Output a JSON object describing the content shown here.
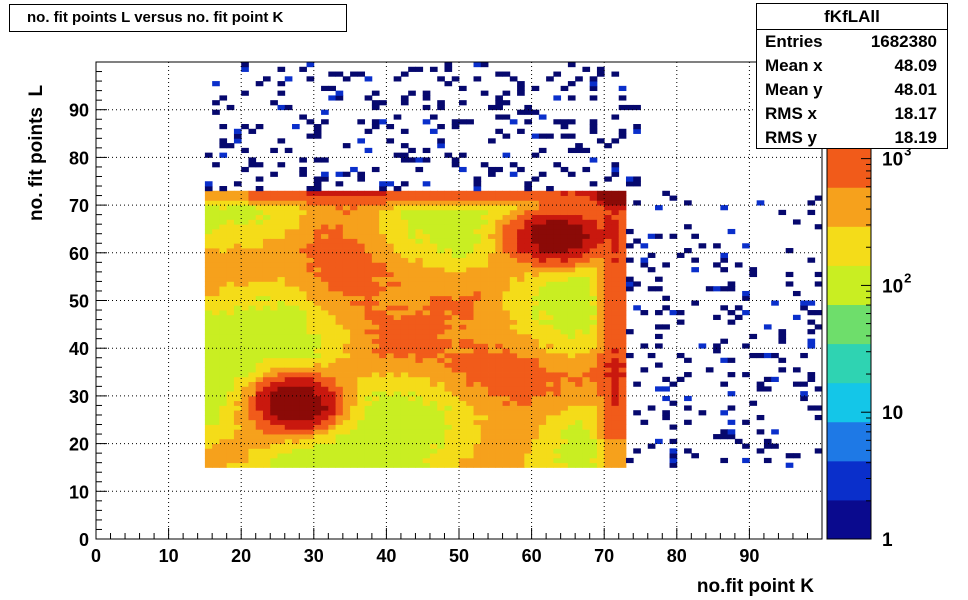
{
  "title": "no. fit points L versus no. fit point K",
  "stats": {
    "name": "fKfLAll",
    "rows": [
      {
        "label": "Entries",
        "value": "1682380"
      },
      {
        "label": "Mean x",
        "value": "48.09"
      },
      {
        "label": "Mean y",
        "value": "48.01"
      },
      {
        "label": "RMS x",
        "value": "18.17"
      },
      {
        "label": "RMS y",
        "value": "18.19"
      }
    ]
  },
  "chart_data": {
    "type": "heatmap",
    "title": "no. fit points L versus no. fit point K",
    "xlabel": "no.fit point K",
    "ylabel": "no. fit points  L",
    "xlim": [
      0,
      100
    ],
    "ylim": [
      0,
      100
    ],
    "x_ticks": [
      "0",
      "10",
      "20",
      "30",
      "40",
      "50",
      "60",
      "70",
      "80",
      "90"
    ],
    "y_ticks": [
      "0",
      "10",
      "20",
      "30",
      "40",
      "50",
      "60",
      "70",
      "80",
      "90"
    ],
    "z_scale": "log",
    "z_range": [
      1,
      5000
    ],
    "z_ticks": [
      {
        "value": 1,
        "base": "1",
        "exp": ""
      },
      {
        "value": 10,
        "base": "10",
        "exp": ""
      },
      {
        "value": 100,
        "base": "10",
        "exp": "2"
      },
      {
        "value": 1000,
        "base": "10",
        "exp": "3"
      }
    ],
    "grid": true,
    "bin_width": 1,
    "dense_region": {
      "x": [
        15,
        73
      ],
      "y": [
        15,
        73
      ]
    },
    "peaks": [
      {
        "x": 27,
        "y": 28,
        "counts": 5000
      },
      {
        "x": 63,
        "y": 63,
        "counts": 4000
      },
      {
        "x": 71,
        "y": 72,
        "counts": 4500
      }
    ],
    "colors": {
      "palette": [
        "#0a0a8e",
        "#0a2fcb",
        "#1e79e6",
        "#14c6e8",
        "#2fd3b2",
        "#6ede6b",
        "#c9ee22",
        "#f4dc19",
        "#f6a11c",
        "#f15b1a",
        "#c9180e",
        "#8b0a07"
      ],
      "sparse": "#06086e"
    },
    "stats": {
      "name": "fKfLAll",
      "entries": 1682380,
      "mean_x": 48.09,
      "mean_y": 48.01,
      "rms_x": 18.17,
      "rms_y": 18.19
    }
  }
}
